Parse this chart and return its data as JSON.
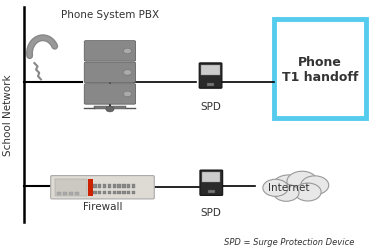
{
  "labels": {
    "school_network": "School Network",
    "phone_pbx": "Phone System PBX",
    "firewall": "Firewall",
    "spd_top": "SPD",
    "spd_bottom": "SPD",
    "phone_t1": "Phone\nT1 handoff",
    "internet": "Internet",
    "legend": "SPD = Surge Protection Device"
  },
  "colors": {
    "bg": "#ffffff",
    "line": "#000000",
    "box_border": "#55ccee",
    "box_fill": "#ffffff",
    "text_dark": "#333333",
    "icon_gray": "#808080",
    "cloud_fill": "#e8e8e8",
    "cloud_stroke": "#999999",
    "rack_face": "#888888",
    "rack_edge": "#555555",
    "spd_body": "#2a2a2a",
    "spd_panel": "#cccccc",
    "fw_face": "#dedad4",
    "fw_edge": "#aaaaaa",
    "fw_red": "#cc2200"
  }
}
